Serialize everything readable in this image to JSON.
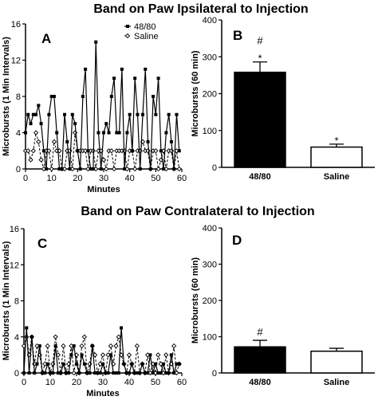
{
  "figure": {
    "title_top": "Band on Paw Ipsilateral to Injection",
    "title_bottom": "Band on Paw Contralateral to Injection"
  },
  "chart_data": [
    {
      "panel": "A",
      "type": "line",
      "xlabel": "Minutes",
      "ylabel": "Microbursts (1 Min Intervals)",
      "xlim": [
        0,
        60
      ],
      "ylim": [
        0,
        16
      ],
      "xticks": [
        "0",
        "10",
        "20",
        "30",
        "40",
        "50",
        "60"
      ],
      "yticks": [
        "0",
        "4",
        "8",
        "12",
        "16"
      ],
      "legend_position": "top-right",
      "x": [
        0,
        1,
        2,
        3,
        4,
        5,
        6,
        7,
        8,
        9,
        10,
        11,
        12,
        13,
        14,
        15,
        16,
        17,
        18,
        19,
        20,
        21,
        22,
        23,
        24,
        25,
        26,
        27,
        28,
        29,
        30,
        31,
        32,
        33,
        34,
        35,
        36,
        37,
        38,
        39,
        40,
        41,
        42,
        43,
        44,
        45,
        46,
        47,
        48,
        49,
        50,
        51,
        52,
        53,
        54,
        55,
        56,
        57,
        58,
        59
      ],
      "series": [
        {
          "name": "48/80",
          "marker": "filled-square",
          "line": "solid",
          "values": [
            4,
            6,
            5,
            6,
            6,
            7,
            5,
            2,
            0,
            6,
            8,
            8,
            4,
            0,
            0,
            6,
            3,
            0,
            6,
            5,
            2,
            0,
            8,
            11,
            2,
            0,
            0,
            14,
            4,
            0,
            4,
            5,
            4,
            8,
            10,
            4,
            4,
            11,
            0,
            4,
            6,
            2,
            10,
            6,
            0,
            6,
            11,
            3,
            0,
            8,
            6,
            10,
            2,
            0,
            4,
            6,
            3,
            0,
            6,
            2
          ]
        },
        {
          "name": "Saline",
          "marker": "open-diamond",
          "line": "dashed",
          "values": [
            2,
            2,
            1,
            2,
            4,
            3,
            1,
            0,
            2,
            2,
            0,
            3,
            2,
            2,
            0,
            0,
            2,
            2,
            0,
            4,
            2,
            2,
            2,
            2,
            0,
            2,
            2,
            0,
            2,
            2,
            1,
            0,
            2,
            2,
            0,
            2,
            2,
            2,
            2,
            0,
            2,
            2,
            0,
            2,
            2,
            3,
            2,
            2,
            0,
            2,
            2,
            0,
            1,
            2,
            0,
            2,
            2,
            0,
            2,
            0
          ]
        }
      ]
    },
    {
      "panel": "B",
      "type": "bar",
      "xlabel": "",
      "ylabel": "Microbursts (60 min)",
      "ylim": [
        0,
        400
      ],
      "yticks": [
        "0",
        "100",
        "200",
        "300",
        "400"
      ],
      "categories": [
        "48/80",
        "Saline"
      ],
      "values": [
        258,
        55
      ],
      "errors": [
        28,
        8
      ],
      "bar_colors": [
        "#000000",
        "#ffffff"
      ],
      "annotations": [
        [
          "#",
          "*"
        ],
        [
          "*"
        ]
      ]
    },
    {
      "panel": "C",
      "type": "line",
      "xlabel": "Minutes",
      "ylabel": "Microbursts (1 Min Intervals)",
      "xlim": [
        0,
        60
      ],
      "ylim": [
        0,
        16
      ],
      "xticks": [
        "0",
        "10",
        "20",
        "30",
        "40",
        "50",
        "60"
      ],
      "yticks": [
        "0",
        "4",
        "8",
        "12",
        "16"
      ],
      "x": [
        0,
        1,
        2,
        3,
        4,
        5,
        6,
        7,
        8,
        9,
        10,
        11,
        12,
        13,
        14,
        15,
        16,
        17,
        18,
        19,
        20,
        21,
        22,
        23,
        24,
        25,
        26,
        27,
        28,
        29,
        30,
        31,
        32,
        33,
        34,
        35,
        36,
        37,
        38,
        39,
        40,
        41,
        42,
        43,
        44,
        45,
        46,
        47,
        48,
        49,
        50,
        51,
        52,
        53,
        54,
        55,
        56,
        57,
        58,
        59
      ],
      "series": [
        {
          "name": "48/80",
          "marker": "filled-square",
          "line": "solid",
          "values": [
            0,
            5,
            0,
            4,
            0,
            1,
            3,
            0,
            0,
            1,
            0,
            0,
            3,
            0,
            0,
            1,
            0,
            0,
            2,
            3,
            1,
            0,
            2,
            1,
            0,
            0,
            3,
            0,
            0,
            0,
            1,
            0,
            0,
            2,
            0,
            0,
            0,
            5,
            1,
            0,
            0,
            1,
            0,
            0,
            0,
            1,
            0,
            0,
            2,
            0,
            1,
            0,
            0,
            1,
            0,
            0,
            2,
            0,
            1,
            1
          ]
        },
        {
          "name": "Saline",
          "marker": "open-diamond",
          "line": "dashed",
          "values": [
            3,
            4,
            2,
            4,
            1,
            3,
            2,
            0,
            1,
            3,
            0,
            1,
            4,
            2,
            0,
            3,
            0,
            1,
            3,
            0,
            2,
            0,
            3,
            4,
            0,
            1,
            3,
            2,
            0,
            1,
            2,
            0,
            2,
            3,
            1,
            3,
            4,
            2,
            1,
            0,
            2,
            1,
            0,
            3,
            0,
            1,
            0,
            2,
            0,
            1,
            0,
            2,
            1,
            0,
            2,
            0,
            1,
            3,
            0,
            1
          ]
        }
      ]
    },
    {
      "panel": "D",
      "type": "bar",
      "xlabel": "",
      "ylabel": "Microbursts (60 min)",
      "ylim": [
        0,
        400
      ],
      "yticks": [
        "0",
        "100",
        "200",
        "300",
        "400"
      ],
      "categories": [
        "48/80",
        "Saline"
      ],
      "values": [
        72,
        60
      ],
      "errors": [
        18,
        8
      ],
      "bar_colors": [
        "#000000",
        "#ffffff"
      ],
      "annotations": [
        [
          "#"
        ],
        []
      ]
    }
  ]
}
